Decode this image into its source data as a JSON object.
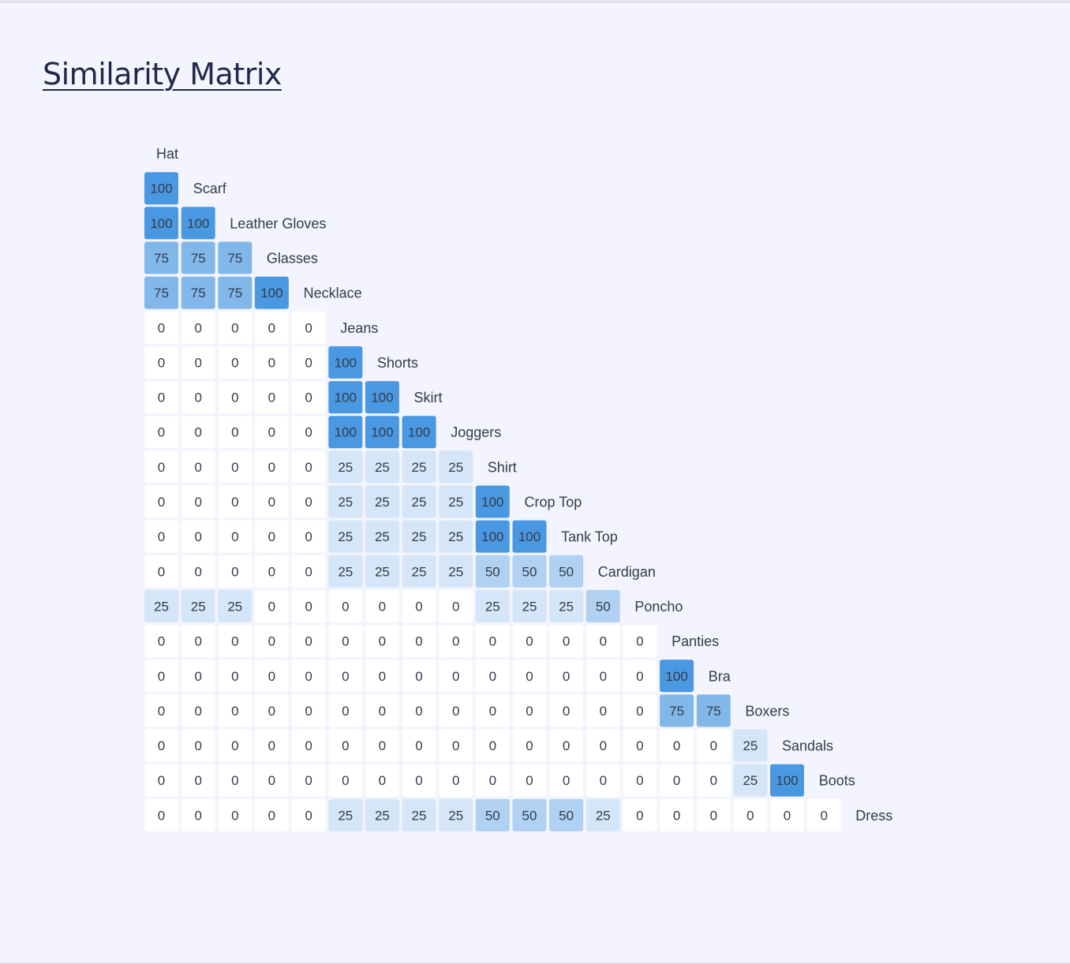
{
  "title": "Similarity Matrix",
  "chart_data": {
    "type": "heatmap",
    "title": "Similarity Matrix",
    "layout": "lower-triangular",
    "labels": [
      "Hat",
      "Scarf",
      "Leather Gloves",
      "Glasses",
      "Necklace",
      "Jeans",
      "Shorts",
      "Skirt",
      "Joggers",
      "Shirt",
      "Crop Top",
      "Tank Top",
      "Cardigan",
      "Poncho",
      "Panties",
      "Bra",
      "Boxers",
      "Sandals",
      "Boots",
      "Dress"
    ],
    "rows": [
      [],
      [
        100
      ],
      [
        100,
        100
      ],
      [
        75,
        75,
        75
      ],
      [
        75,
        75,
        75,
        100
      ],
      [
        0,
        0,
        0,
        0,
        0
      ],
      [
        0,
        0,
        0,
        0,
        0,
        100
      ],
      [
        0,
        0,
        0,
        0,
        0,
        100,
        100
      ],
      [
        0,
        0,
        0,
        0,
        0,
        100,
        100,
        100
      ],
      [
        0,
        0,
        0,
        0,
        0,
        25,
        25,
        25,
        25
      ],
      [
        0,
        0,
        0,
        0,
        0,
        25,
        25,
        25,
        25,
        100
      ],
      [
        0,
        0,
        0,
        0,
        0,
        25,
        25,
        25,
        25,
        100,
        100
      ],
      [
        0,
        0,
        0,
        0,
        0,
        25,
        25,
        25,
        25,
        50,
        50,
        50
      ],
      [
        25,
        25,
        25,
        0,
        0,
        0,
        0,
        0,
        0,
        25,
        25,
        25,
        50
      ],
      [
        0,
        0,
        0,
        0,
        0,
        0,
        0,
        0,
        0,
        0,
        0,
        0,
        0,
        0
      ],
      [
        0,
        0,
        0,
        0,
        0,
        0,
        0,
        0,
        0,
        0,
        0,
        0,
        0,
        0,
        100
      ],
      [
        0,
        0,
        0,
        0,
        0,
        0,
        0,
        0,
        0,
        0,
        0,
        0,
        0,
        0,
        75,
        75
      ],
      [
        0,
        0,
        0,
        0,
        0,
        0,
        0,
        0,
        0,
        0,
        0,
        0,
        0,
        0,
        0,
        0,
        25
      ],
      [
        0,
        0,
        0,
        0,
        0,
        0,
        0,
        0,
        0,
        0,
        0,
        0,
        0,
        0,
        0,
        0,
        25,
        100
      ],
      [
        0,
        0,
        0,
        0,
        0,
        25,
        25,
        25,
        25,
        50,
        50,
        50,
        25,
        0,
        0,
        0,
        0,
        0,
        0
      ]
    ],
    "value_range": [
      0,
      100
    ],
    "colors": {
      "0": "#ffffff",
      "25": "#d4e6f8",
      "50": "#b0d1f1",
      "75": "#82b7ea",
      "100": "#4a98e2"
    },
    "text_color": "#333b4a"
  }
}
